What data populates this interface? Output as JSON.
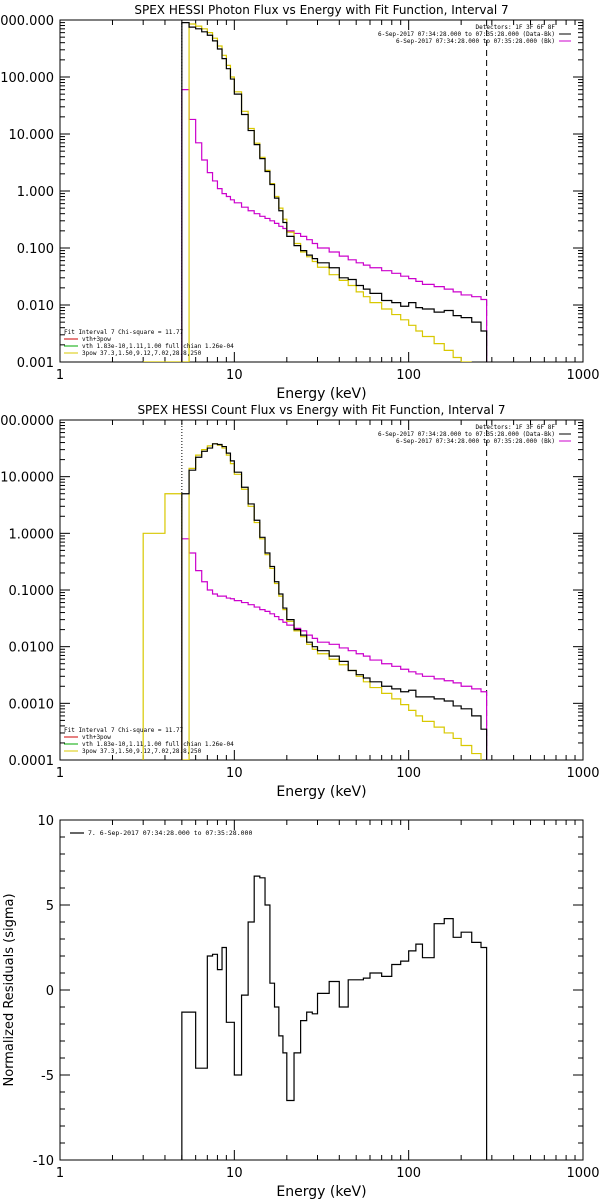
{
  "chart_data": [
    {
      "type": "line",
      "title": "SPEX HESSI Photon Flux vs Energy with Fit Function, Interval 7",
      "xlabel": "Energy (keV)",
      "ylabel": "",
      "xscale": "log",
      "yscale": "log",
      "xlim": [
        1,
        1000
      ],
      "ylim": [
        0.001,
        1000
      ],
      "xticks": [
        {
          "v": 1,
          "label": "1"
        },
        {
          "v": 10,
          "label": "10"
        },
        {
          "v": 100,
          "label": "100"
        },
        {
          "v": 1000,
          "label": "1000"
        }
      ],
      "yticks": [
        {
          "v": 0.001,
          "label": "0.001"
        },
        {
          "v": 0.01,
          "label": "0.010"
        },
        {
          "v": 0.1,
          "label": "0.100"
        },
        {
          "v": 1,
          "label": "1.000"
        },
        {
          "v": 10,
          "label": "10.000"
        },
        {
          "v": 100,
          "label": "100.000"
        },
        {
          "v": 1000,
          "label": "1000.000"
        }
      ],
      "legend_right": [
        "Detectors: 1F 3F 6F 8F",
        "6-Sep-2017 07:34:28.000 to 07:35:28.000 (Data-Bk)",
        "6-Sep-2017 07:34:28.000 to 07:35:28.000 (Bk)"
      ],
      "legend_left": [
        "Fit Interval 7   Chi-square = 11.77",
        "vth+3pow",
        "vth 1.83e-10,1.11,1.00   full chian 1.26e-04",
        "3pow 37.3,1.50,9.12,7.02,28.8,250"
      ],
      "vline_dashed": 280,
      "vline_dotted": 5,
      "series": [
        {
          "name": "data",
          "color": "#000000",
          "edges": [
            5,
            5.5,
            6,
            6.5,
            7,
            7.5,
            8,
            8.5,
            9,
            9.5,
            10,
            11,
            12,
            13,
            14,
            15,
            16,
            17,
            18,
            19,
            20,
            22,
            24,
            26,
            28,
            30,
            35,
            40,
            45,
            50,
            55,
            60,
            70,
            80,
            90,
            100,
            110,
            120,
            140,
            160,
            180,
            200,
            230,
            260,
            280
          ],
          "values": [
            900,
            750,
            700,
            620,
            540,
            430,
            310,
            210,
            140,
            92,
            50,
            22,
            11.5,
            6.5,
            3.7,
            2.2,
            1.3,
            0.75,
            0.45,
            0.28,
            0.16,
            0.11,
            0.09,
            0.075,
            0.065,
            0.055,
            0.045,
            0.03,
            0.028,
            0.022,
            0.019,
            0.016,
            0.012,
            0.011,
            0.0095,
            0.011,
            0.009,
            0.0085,
            0.0075,
            0.008,
            0.0065,
            0.006,
            0.005,
            0.0035
          ]
        },
        {
          "name": "vth+3pow",
          "color": "#d8c800",
          "edges": [
            3,
            5,
            5.5,
            6,
            6.5,
            7,
            7.5,
            8,
            8.5,
            9,
            9.5,
            10,
            11,
            12,
            13,
            14,
            15,
            16,
            17,
            18,
            19,
            20,
            22,
            24,
            26,
            28,
            30,
            35,
            40,
            45,
            50,
            55,
            60,
            70,
            80,
            90,
            100,
            110,
            120,
            140,
            160,
            180,
            200,
            230
          ],
          "values": [
            0.0009,
            0.0009,
            850,
            780,
            700,
            600,
            480,
            350,
            240,
            160,
            100,
            55,
            25,
            12.5,
            6.9,
            3.9,
            2.3,
            1.35,
            0.8,
            0.5,
            0.32,
            0.19,
            0.12,
            0.085,
            0.07,
            0.058,
            0.046,
            0.034,
            0.027,
            0.022,
            0.017,
            0.014,
            0.011,
            0.0085,
            0.0068,
            0.0055,
            0.0044,
            0.0035,
            0.0028,
            0.0021,
            0.0016,
            0.0012,
            0.0009
          ]
        },
        {
          "name": "background",
          "color": "#cc00cc",
          "edges": [
            5,
            5.5,
            6,
            6.5,
            7,
            7.5,
            8,
            8.5,
            9,
            9.5,
            10,
            11,
            12,
            13,
            14,
            15,
            16,
            17,
            18,
            19,
            20,
            22,
            24,
            26,
            28,
            30,
            35,
            40,
            45,
            50,
            55,
            60,
            70,
            80,
            90,
            100,
            110,
            120,
            140,
            160,
            180,
            200,
            230,
            260,
            280
          ],
          "values": [
            60,
            18,
            7,
            3.5,
            2.1,
            1.5,
            1.1,
            0.9,
            0.8,
            0.7,
            0.62,
            0.52,
            0.45,
            0.4,
            0.36,
            0.33,
            0.3,
            0.27,
            0.24,
            0.22,
            0.2,
            0.18,
            0.16,
            0.14,
            0.12,
            0.1,
            0.085,
            0.072,
            0.062,
            0.055,
            0.05,
            0.045,
            0.04,
            0.036,
            0.032,
            0.029,
            0.026,
            0.023,
            0.021,
            0.019,
            0.017,
            0.015,
            0.014,
            0.0125
          ]
        }
      ]
    },
    {
      "type": "line",
      "title": "SPEX HESSI Count Flux vs Energy with Fit Function, Interval 7",
      "xlabel": "Energy (keV)",
      "ylabel": "",
      "xscale": "log",
      "yscale": "log",
      "xlim": [
        1,
        1000
      ],
      "ylim": [
        0.0001,
        100
      ],
      "xticks": [
        {
          "v": 1,
          "label": "1"
        },
        {
          "v": 10,
          "label": "10"
        },
        {
          "v": 100,
          "label": "100"
        },
        {
          "v": 1000,
          "label": "1000"
        }
      ],
      "yticks": [
        {
          "v": 0.0001,
          "label": "0.0001"
        },
        {
          "v": 0.001,
          "label": "0.0010"
        },
        {
          "v": 0.01,
          "label": "0.0100"
        },
        {
          "v": 0.1,
          "label": "0.1000"
        },
        {
          "v": 1,
          "label": "1.0000"
        },
        {
          "v": 10,
          "label": "10.0000"
        },
        {
          "v": 100,
          "label": "100.0000"
        }
      ],
      "legend_right": [
        "Detectors: 1F 3F 6F 8F",
        "6-Sep-2017 07:34:28.000 to 07:35:28.000 (Data-Bk)",
        "6-Sep-2017 07:34:28.000 to 07:35:28.000 (Bk)"
      ],
      "legend_left": [
        "Fit Interval 7   Chi-square = 11.77",
        "vth+3pow",
        "vth 1.83e-10,1.11,1.00   full chian 1.26e-04",
        "3pow 37.3,1.50,9.12,7.02,28.8,250"
      ],
      "vline_dashed": 280,
      "vline_dotted": 5,
      "series": [
        {
          "name": "data",
          "color": "#000000",
          "edges": [
            5,
            5.5,
            6,
            6.5,
            7,
            7.5,
            8,
            8.5,
            9,
            9.5,
            10,
            11,
            12,
            13,
            14,
            15,
            16,
            17,
            18,
            19,
            20,
            22,
            24,
            26,
            28,
            30,
            35,
            40,
            45,
            50,
            55,
            60,
            70,
            80,
            90,
            100,
            110,
            120,
            140,
            160,
            180,
            200,
            230,
            260,
            280
          ],
          "values": [
            5,
            13,
            22,
            28,
            32,
            38,
            37,
            34,
            26,
            19,
            12,
            6.5,
            3.3,
            1.7,
            0.85,
            0.45,
            0.26,
            0.14,
            0.085,
            0.048,
            0.03,
            0.02,
            0.016,
            0.012,
            0.01,
            0.0085,
            0.0068,
            0.0055,
            0.0038,
            0.0032,
            0.0028,
            0.0024,
            0.002,
            0.0018,
            0.0016,
            0.0017,
            0.0013,
            0.0013,
            0.0012,
            0.0011,
            0.0009,
            0.0008,
            0.0006,
            0.00035
          ]
        },
        {
          "name": "vth+3pow",
          "color": "#d8c800",
          "edges": [
            3,
            4,
            5,
            5.5,
            6,
            6.5,
            7,
            7.5,
            8,
            8.5,
            9,
            9.5,
            10,
            11,
            12,
            13,
            14,
            15,
            16,
            17,
            18,
            19,
            20,
            22,
            24,
            26,
            28,
            30,
            35,
            40,
            45,
            50,
            55,
            60,
            70,
            80,
            90,
            100,
            110,
            120,
            140,
            160,
            180,
            200,
            230,
            260
          ],
          "values": [
            1,
            5,
            9e-05,
            14,
            24,
            30,
            35,
            38,
            36,
            32,
            24,
            17,
            11,
            6,
            3,
            1.55,
            0.8,
            0.42,
            0.24,
            0.13,
            0.078,
            0.045,
            0.028,
            0.019,
            0.015,
            0.011,
            0.009,
            0.0075,
            0.006,
            0.0048,
            0.0038,
            0.003,
            0.0024,
            0.0019,
            0.0015,
            0.0012,
            0.00095,
            0.00075,
            0.0006,
            0.00048,
            0.00038,
            0.0003,
            0.00024,
            0.00018,
            0.00013,
            0.0001
          ]
        },
        {
          "name": "background",
          "color": "#cc00cc",
          "edges": [
            5,
            5.5,
            6,
            6.5,
            7,
            7.5,
            8,
            8.5,
            9,
            9.5,
            10,
            11,
            12,
            13,
            14,
            15,
            16,
            17,
            18,
            19,
            20,
            22,
            24,
            26,
            28,
            30,
            35,
            40,
            45,
            50,
            55,
            60,
            70,
            80,
            90,
            100,
            110,
            120,
            140,
            160,
            180,
            200,
            230,
            260,
            280
          ],
          "values": [
            0.8,
            0.45,
            0.22,
            0.14,
            0.1,
            0.085,
            0.078,
            0.078,
            0.072,
            0.07,
            0.065,
            0.06,
            0.055,
            0.05,
            0.045,
            0.042,
            0.038,
            0.034,
            0.03,
            0.027,
            0.024,
            0.021,
            0.019,
            0.016,
            0.014,
            0.012,
            0.011,
            0.0095,
            0.0085,
            0.0075,
            0.0068,
            0.0058,
            0.005,
            0.0045,
            0.004,
            0.0036,
            0.0033,
            0.003,
            0.0027,
            0.0025,
            0.0023,
            0.002,
            0.0018,
            0.0016
          ]
        }
      ]
    },
    {
      "type": "line",
      "title": "",
      "xlabel": "Energy (keV)",
      "ylabel": "Normalized Residuals (sigma)",
      "xscale": "log",
      "yscale": "linear",
      "xlim": [
        1,
        1000
      ],
      "ylim": [
        -10,
        10
      ],
      "xticks": [
        {
          "v": 1,
          "label": "1"
        },
        {
          "v": 10,
          "label": "10"
        },
        {
          "v": 100,
          "label": "100"
        },
        {
          "v": 1000,
          "label": "1000"
        }
      ],
      "yticks": [
        {
          "v": -10,
          "label": "-10"
        },
        {
          "v": -5,
          "label": "-5"
        },
        {
          "v": 0,
          "label": "0"
        },
        {
          "v": 5,
          "label": "5"
        },
        {
          "v": 10,
          "label": "10"
        }
      ],
      "legend_left": [
        "7.  6-Sep-2017 07:34:28.000 to 07:35:28.000"
      ],
      "series": [
        {
          "name": "7.",
          "color": "#000000",
          "edges": [
            5,
            5.5,
            6,
            6.5,
            7,
            7.5,
            8,
            8.5,
            9,
            9.5,
            10,
            11,
            12,
            13,
            14,
            15,
            16,
            17,
            18,
            19,
            20,
            22,
            24,
            26,
            28,
            30,
            35,
            40,
            45,
            50,
            55,
            60,
            70,
            80,
            90,
            100,
            110,
            120,
            140,
            160,
            180,
            200,
            230,
            260,
            280
          ],
          "values": [
            -1.3,
            -1.3,
            -4.6,
            -4.6,
            2.0,
            2.1,
            1.2,
            2.5,
            -1.9,
            -1.9,
            -5.0,
            -0.3,
            4.0,
            6.7,
            6.6,
            5.0,
            0.4,
            -1.0,
            -2.7,
            -3.7,
            -6.5,
            -3.7,
            -1.8,
            -1.3,
            -1.4,
            -0.2,
            0.5,
            -1.0,
            0.6,
            0.6,
            0.7,
            1.0,
            0.8,
            1.5,
            1.7,
            2.3,
            2.7,
            1.9,
            3.9,
            4.2,
            3.1,
            3.4,
            2.8,
            2.5
          ]
        }
      ]
    }
  ]
}
